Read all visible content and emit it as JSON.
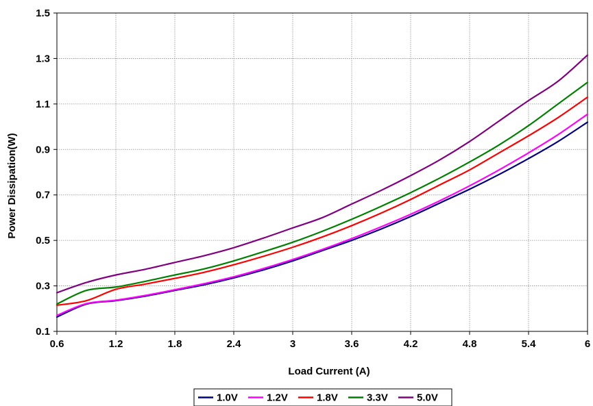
{
  "chart_data": {
    "type": "line",
    "title": "",
    "xlabel": "Load Current (A)",
    "ylabel": "Power Dissipation(W)",
    "xlim": [
      0.6,
      6
    ],
    "ylim": [
      0.1,
      1.5
    ],
    "x_ticks": [
      0.6,
      1.2,
      1.8,
      2.4,
      3,
      3.6,
      4.2,
      4.8,
      5.4,
      6
    ],
    "x_tick_labels": [
      "0.6",
      "1.2",
      "1.8",
      "2.4",
      "3",
      "3.6",
      "4.2",
      "4.8",
      "5.4",
      "6"
    ],
    "y_ticks": [
      0.1,
      0.3,
      0.5,
      0.7,
      0.9,
      1.1,
      1.3,
      1.5
    ],
    "y_tick_labels": [
      "0.1",
      "0.3",
      "0.5",
      "0.7",
      "0.9",
      "1.1",
      "1.3",
      "1.5"
    ],
    "grid": true,
    "legend_position": "bottom",
    "x": [
      0.6,
      0.9,
      1.2,
      1.5,
      1.8,
      2.1,
      2.4,
      2.7,
      3.0,
      3.3,
      3.6,
      3.9,
      4.2,
      4.5,
      4.8,
      5.1,
      5.4,
      5.7,
      6.0
    ],
    "series": [
      {
        "name": "1.0V",
        "color": "#000080",
        "values": [
          0.163,
          0.22,
          0.235,
          0.255,
          0.28,
          0.305,
          0.335,
          0.37,
          0.41,
          0.455,
          0.5,
          0.55,
          0.605,
          0.665,
          0.725,
          0.79,
          0.86,
          0.935,
          1.02
        ]
      },
      {
        "name": "1.2V",
        "color": "#FF00FF",
        "values": [
          0.17,
          0.222,
          0.237,
          0.258,
          0.283,
          0.31,
          0.34,
          0.376,
          0.416,
          0.46,
          0.508,
          0.56,
          0.615,
          0.675,
          0.74,
          0.81,
          0.885,
          0.965,
          1.055
        ]
      },
      {
        "name": "1.8V",
        "color": "#FF0000",
        "values": [
          0.215,
          0.235,
          0.285,
          0.308,
          0.333,
          0.36,
          0.393,
          0.43,
          0.47,
          0.515,
          0.565,
          0.62,
          0.68,
          0.745,
          0.81,
          0.885,
          0.96,
          1.04,
          1.13
        ]
      },
      {
        "name": "3.3V",
        "color": "#008000",
        "values": [
          0.22,
          0.28,
          0.295,
          0.32,
          0.348,
          0.375,
          0.41,
          0.45,
          0.492,
          0.54,
          0.593,
          0.65,
          0.71,
          0.775,
          0.845,
          0.92,
          1.005,
          1.1,
          1.195
        ]
      },
      {
        "name": "5.0V",
        "color": "#800080",
        "values": [
          0.27,
          0.315,
          0.348,
          0.373,
          0.403,
          0.433,
          0.468,
          0.51,
          0.555,
          0.6,
          0.66,
          0.72,
          0.785,
          0.855,
          0.935,
          1.025,
          1.115,
          1.2,
          1.315
        ]
      }
    ]
  }
}
